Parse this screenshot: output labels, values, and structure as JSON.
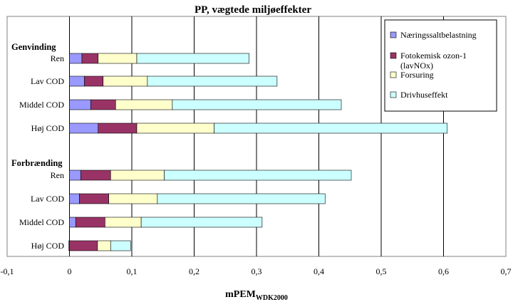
{
  "chart_data": {
    "type": "bar",
    "orientation": "horizontal",
    "stacked": true,
    "title": "PP, vægtede miljøeffekter",
    "xlabel_main": "mPEM",
    "xlabel_sub": "WDK2000",
    "xlim": [
      -0.1,
      0.7
    ],
    "x_ticks": [
      "-0,1",
      "0",
      "0,1",
      "0,2",
      "0,3",
      "0,4",
      "0,5",
      "0,6",
      "0,7"
    ],
    "grid": "vertical",
    "legend_position": "top-right",
    "groups": [
      {
        "label": "Genvinding",
        "categories": [
          "Ren",
          "Lav COD",
          "Middel COD",
          "Høj COD"
        ]
      },
      {
        "label": "Forbrænding",
        "categories": [
          "Ren",
          "Lav COD",
          "Middel COD",
          "Høj COD"
        ]
      }
    ],
    "series": [
      {
        "name": "Næringssaltbelastning",
        "color": "#9999ff",
        "values": [
          0.02,
          0.024,
          0.034,
          0.046,
          0.018,
          0.016,
          0.01,
          -0.001
        ]
      },
      {
        "name": "Fotokemisk ozon-1 (lavNOx)",
        "color": "#993366",
        "values": [
          0.026,
          0.03,
          0.04,
          0.062,
          0.048,
          0.047,
          0.047,
          0.045
        ]
      },
      {
        "name": "Forsuring",
        "color": "#ffffcc",
        "values": [
          0.062,
          0.071,
          0.091,
          0.124,
          0.086,
          0.078,
          0.058,
          0.021
        ]
      },
      {
        "name": "Drivhuseffekt",
        "color": "#ccffff",
        "values": [
          0.18,
          0.208,
          0.271,
          0.374,
          0.3,
          0.269,
          0.194,
          0.032
        ]
      }
    ]
  }
}
